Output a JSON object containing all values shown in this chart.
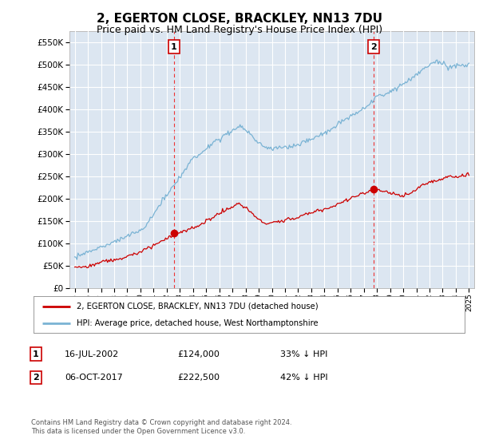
{
  "title": "2, EGERTON CLOSE, BRACKLEY, NN13 7DU",
  "subtitle": "Price paid vs. HM Land Registry's House Price Index (HPI)",
  "title_fontsize": 11,
  "subtitle_fontsize": 9,
  "background_color": "#ffffff",
  "plot_bg_color": "#dce6f1",
  "grid_color": "#ffffff",
  "sale1_date_num": 2002.54,
  "sale1_price": 124000,
  "sale2_date_num": 2017.76,
  "sale2_price": 222500,
  "hpi_line_color": "#7ab3d4",
  "price_line_color": "#cc0000",
  "dashed_line_color": "#ee3333",
  "annotation_box_color": "#cc0000",
  "legend_label_price": "2, EGERTON CLOSE, BRACKLEY, NN13 7DU (detached house)",
  "legend_label_hpi": "HPI: Average price, detached house, West Northamptonshire",
  "table_row1": [
    "1",
    "16-JUL-2002",
    "£124,000",
    "33% ↓ HPI"
  ],
  "table_row2": [
    "2",
    "06-OCT-2017",
    "£222,500",
    "42% ↓ HPI"
  ],
  "footer_text": "Contains HM Land Registry data © Crown copyright and database right 2024.\nThis data is licensed under the Open Government Licence v3.0.",
  "ylim_max": 575000,
  "yticks": [
    0,
    50000,
    100000,
    150000,
    200000,
    250000,
    300000,
    350000,
    400000,
    450000,
    500000,
    550000
  ],
  "xlim_start": 1994.6,
  "xlim_end": 2025.4
}
